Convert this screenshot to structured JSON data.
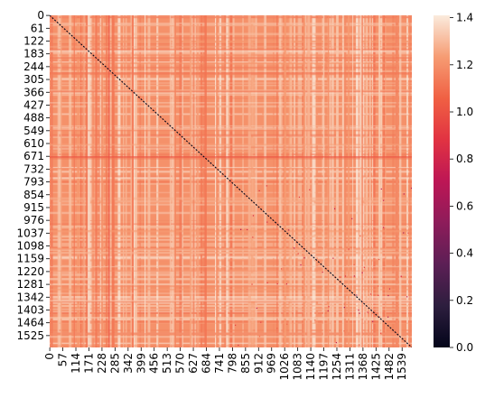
{
  "chart_data": {
    "type": "heatmap",
    "title": "",
    "xlabel": "",
    "ylabel": "",
    "n": 1582,
    "y_tick_labels": [
      "0",
      "61",
      "122",
      "183",
      "244",
      "305",
      "366",
      "427",
      "488",
      "549",
      "610",
      "671",
      "732",
      "793",
      "854",
      "915",
      "976",
      "1037",
      "1098",
      "1159",
      "1220",
      "1281",
      "1342",
      "1403",
      "1464",
      "1525"
    ],
    "x_tick_labels": [
      "0",
      "57",
      "114",
      "171",
      "228",
      "285",
      "342",
      "399",
      "456",
      "513",
      "570",
      "627",
      "684",
      "741",
      "798",
      "855",
      "912",
      "969",
      "1026",
      "1083",
      "1140",
      "1197",
      "1254",
      "1311",
      "1368",
      "1425",
      "1482",
      "1539"
    ],
    "colorbar": {
      "ticks": [
        "0.0",
        "0.2",
        "0.4",
        "0.6",
        "0.8",
        "1.0",
        "1.2",
        "1.4"
      ],
      "min": 0.0,
      "max": 1.41,
      "colors": [
        "#03051a",
        "#2d1e3e",
        "#5c1f55",
        "#8d1c5a",
        "#bd1655",
        "#e13342",
        "#f06043",
        "#f69c73",
        "#faebdd"
      ]
    },
    "values_description_free": true,
    "typical_value": 1.2,
    "diagonal_value": 0.0
  }
}
